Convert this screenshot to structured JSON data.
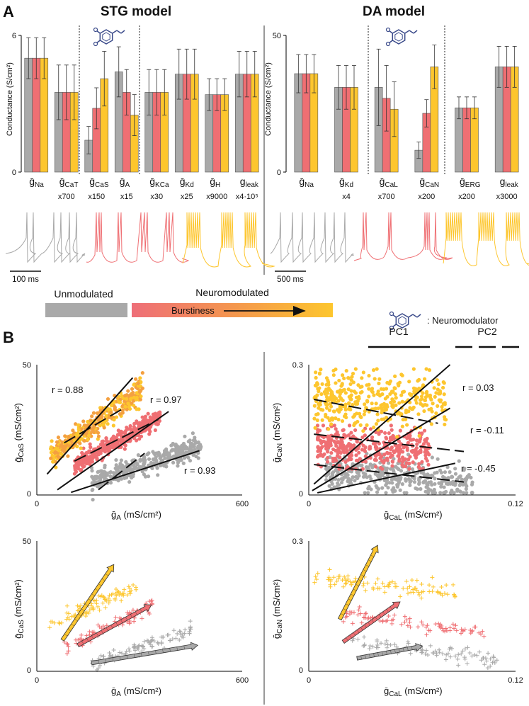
{
  "colors": {
    "unmod": "#a9a9a9",
    "red": "#ef6f73",
    "yellow": "#fdc62e",
    "orange": "#f4a040",
    "mol": "#3a4a8a",
    "black": "#000000"
  },
  "panel_a": {
    "letter": "A",
    "stg_title": "STG model",
    "da_title": "DA model",
    "stg_scale": "100 ms",
    "da_scale": "500 ms",
    "legend_unmod": "Unmodulated",
    "legend_neuromod": "Neuromodulated",
    "legend_burst": "Burstiness",
    "legend_neuromodulator": ": Neuromodulator"
  },
  "panel_b": {
    "letter": "B",
    "pc1": "PC1",
    "pc2": "PC2"
  },
  "chart_data": [
    {
      "id": "stg_bar",
      "type": "bar",
      "title": "STG model",
      "ylabel": "Conductance (S/cm²)",
      "ylim": [
        0,
        6
      ],
      "yticks": [
        "0",
        "6"
      ],
      "categories": [
        {
          "sym": "ḡ",
          "sub": "Na",
          "scale": ""
        },
        {
          "sym": "ḡ",
          "sub": "CaT",
          "scale": "x700"
        },
        {
          "sym": "ḡ",
          "sub": "CaS",
          "scale": "x150"
        },
        {
          "sym": "ḡ",
          "sub": "A",
          "scale": "x15"
        },
        {
          "sym": "ḡ",
          "sub": "KCa",
          "scale": "x30"
        },
        {
          "sym": "ḡ",
          "sub": "Kd",
          "scale": "x25"
        },
        {
          "sym": "ḡ",
          "sub": "H",
          "scale": "x9000"
        },
        {
          "sym": "g",
          "sub": "leak",
          "scale": "x4·10⁵"
        }
      ],
      "series": [
        {
          "name": "Unmodulated",
          "values": [
            5.0,
            3.5,
            1.4,
            4.4,
            3.5,
            4.3,
            3.4,
            4.3
          ],
          "errors": [
            0.9,
            1.2,
            0.6,
            1.1,
            1.0,
            1.1,
            0.7,
            1.0
          ]
        },
        {
          "name": "Neuromodulated (low)",
          "values": [
            5.0,
            3.5,
            2.8,
            3.5,
            3.5,
            4.3,
            3.4,
            4.3
          ],
          "errors": [
            0.9,
            1.2,
            0.9,
            1.0,
            1.0,
            1.1,
            0.7,
            1.0
          ]
        },
        {
          "name": "Neuromodulated (high)",
          "values": [
            5.0,
            3.5,
            4.1,
            2.5,
            3.5,
            4.3,
            3.4,
            4.3
          ],
          "errors": [
            0.9,
            1.2,
            1.2,
            0.9,
            1.0,
            1.1,
            0.7,
            1.0
          ]
        }
      ],
      "modulated_groups": [
        2,
        3
      ]
    },
    {
      "id": "da_bar",
      "type": "bar",
      "title": "DA model",
      "ylabel": "Conductance (S/cm²)",
      "ylim": [
        0,
        50
      ],
      "yticks": [
        "0",
        "50"
      ],
      "categories": [
        {
          "sym": "ḡ",
          "sub": "Na",
          "scale": ""
        },
        {
          "sym": "ḡ",
          "sub": "Kd",
          "scale": "x4"
        },
        {
          "sym": "ḡ",
          "sub": "CaL",
          "scale": "x700"
        },
        {
          "sym": "ḡ",
          "sub": "CaN",
          "scale": "x200"
        },
        {
          "sym": "ḡ",
          "sub": "ERG",
          "scale": "x200"
        },
        {
          "sym": "g",
          "sub": "leak",
          "scale": "x3000"
        }
      ],
      "series": [
        {
          "name": "Unmodulated",
          "values": [
            36,
            31,
            31,
            8,
            23.5,
            38.5
          ],
          "errors": [
            7,
            8,
            14,
            3,
            4,
            7.5
          ]
        },
        {
          "name": "Neuromodulated (low)",
          "values": [
            36,
            31,
            27,
            21.5,
            23.5,
            38.5
          ],
          "errors": [
            7,
            8,
            12,
            5,
            4,
            7.5
          ]
        },
        {
          "name": "Neuromodulated (high)",
          "values": [
            36,
            31,
            23,
            38.5,
            23.5,
            38.5
          ],
          "errors": [
            7,
            8,
            10,
            8,
            4,
            7.5
          ]
        }
      ],
      "modulated_groups": [
        2,
        3
      ]
    },
    {
      "id": "stg_scatter",
      "type": "scatter",
      "xlabel": "ḡA (mS/cm²)",
      "ylabel": "ḡCaS (mS/cm²)",
      "xlim": [
        0,
        600
      ],
      "ylim": [
        0,
        50
      ],
      "xticks": [
        "0",
        "600"
      ],
      "yticks": [
        "0",
        "50"
      ],
      "clusters": [
        {
          "name": "Unmodulated",
          "color": "gray",
          "x_range": [
            160,
            480
          ],
          "y_range": [
            5,
            19
          ],
          "spread": 2.0,
          "r": "r = 0.93",
          "pc1": [
            [
              100,
              1
            ],
            [
              475,
              17
            ]
          ],
          "pc2": [
            [
              180,
              2
            ],
            [
              315,
              16
            ]
          ]
        },
        {
          "name": "Neuromodulated (low)",
          "color": "red",
          "x_range": [
            110,
            360
          ],
          "y_range": [
            11,
            30
          ],
          "spread": 1.6,
          "r": "r = 0.97",
          "pc1": [
            [
              60,
              2
            ],
            [
              385,
              32
            ]
          ],
          "pc2": [
            [
              110,
              13
            ],
            [
              355,
              29
            ]
          ]
        },
        {
          "name": "Neuromodulated (high)",
          "color": "orange",
          "x_range": [
            40,
            310
          ],
          "y_range": [
            15,
            41
          ],
          "spread": 2.5,
          "r": "r = 0.88",
          "pc1": [
            [
              30,
              8
            ],
            [
              280,
              45
            ]
          ],
          "pc2": [
            [
              80,
              20
            ],
            [
              250,
              33
            ]
          ]
        }
      ],
      "r_labels": [
        {
          "text": "r = 0.88"
        },
        {
          "text": "r = 0.97"
        },
        {
          "text": "r = 0.93"
        }
      ]
    },
    {
      "id": "da_scatter",
      "type": "scatter",
      "xlabel": "ḡCaL (mS/cm²)",
      "ylabel": "ḡCaN (mS/cm²)",
      "xlim": [
        0,
        0.12
      ],
      "ylim": [
        0,
        0.3
      ],
      "xticks": [
        "0",
        "0.12"
      ],
      "yticks": [
        "0",
        "0.3"
      ],
      "clusters": [
        {
          "name": "Unmodulated",
          "color": "gray",
          "x_range": [
            0.01,
            0.095
          ],
          "y_range": [
            0.005,
            0.105
          ],
          "center_y": 0.045,
          "slope": -0.35,
          "spread": 0.02,
          "r": "r = -0.45",
          "pc1": [
            [
              0.005,
              0.005
            ],
            [
              0.085,
              0.073
            ]
          ],
          "pc2": [
            [
              0.003,
              0.07
            ],
            [
              0.09,
              0.03
            ]
          ]
        },
        {
          "name": "Neuromodulated (low)",
          "color": "red",
          "x_range": [
            0.005,
            0.07
          ],
          "y_range": [
            0.06,
            0.16
          ],
          "center_y": 0.11,
          "slope": -0.2,
          "spread": 0.022,
          "r": "r = -0.11",
          "pc1": [
            [
              0.002,
              0.01
            ],
            [
              0.082,
              0.2
            ]
          ],
          "pc2": [
            [
              0.003,
              0.14
            ],
            [
              0.09,
              0.1
            ]
          ]
        },
        {
          "name": "Neuromodulated (high)",
          "color": "yellow",
          "x_range": [
            0.003,
            0.08
          ],
          "y_range": [
            0.13,
            0.29
          ],
          "center_y": 0.22,
          "slope": -0.1,
          "spread": 0.032,
          "r": "r = 0.03",
          "pc1": [
            [
              0.003,
              0.025
            ],
            [
              0.082,
              0.3
            ]
          ],
          "pc2": [
            [
              0.003,
              0.22
            ],
            [
              0.075,
              0.165
            ]
          ]
        }
      ],
      "r_labels": [
        {
          "text": "r = 0.03"
        },
        {
          "text": "r = -0.11"
        },
        {
          "text": "r = -0.45"
        }
      ]
    },
    {
      "id": "stg_traj",
      "type": "scatter",
      "xlabel": "ḡA (mS/cm²)",
      "ylabel": "ḡCaS (mS/cm²)",
      "xlim": [
        0,
        600
      ],
      "ylim": [
        0,
        50
      ],
      "xticks": [
        "0",
        "600"
      ],
      "yticks": [
        "0",
        "50"
      ],
      "bands": [
        {
          "color": "yellow",
          "from": [
            35,
            18
          ],
          "to": [
            290,
            32
          ],
          "n": 90,
          "jitter": 1.6
        },
        {
          "color": "red",
          "from": [
            75,
            9
          ],
          "to": [
            340,
            25
          ],
          "n": 90,
          "jitter": 1.6
        },
        {
          "color": "gray",
          "from": [
            160,
            3
          ],
          "to": [
            455,
            16
          ],
          "n": 100,
          "jitter": 1.3
        }
      ],
      "arrows": [
        {
          "color": "yellow",
          "from": [
            75,
            12
          ],
          "to": [
            225,
            41
          ]
        },
        {
          "color": "red",
          "from": [
            120,
            10
          ],
          "to": [
            335,
            25.5
          ]
        },
        {
          "color": "gray",
          "from": [
            160,
            3.2
          ],
          "to": [
            470,
            10
          ]
        }
      ]
    },
    {
      "id": "da_traj",
      "type": "scatter",
      "xlabel": "ḡCaL (mS/cm²)",
      "ylabel": "ḡCaN (mS/cm²)",
      "xlim": [
        0,
        0.12
      ],
      "ylim": [
        0,
        0.3
      ],
      "xticks": [
        "0",
        "0.12"
      ],
      "yticks": [
        "0",
        "0.3"
      ],
      "bands": [
        {
          "color": "yellow",
          "from": [
            0.002,
            0.215
          ],
          "to": [
            0.085,
            0.18
          ],
          "n": 100,
          "jitter": 0.008
        },
        {
          "color": "red",
          "from": [
            0.02,
            0.13
          ],
          "to": [
            0.103,
            0.088
          ],
          "n": 90,
          "jitter": 0.008
        },
        {
          "color": "gray",
          "from": [
            0.025,
            0.072
          ],
          "to": [
            0.11,
            0.025
          ],
          "n": 90,
          "jitter": 0.008
        }
      ],
      "arrows": [
        {
          "color": "yellow",
          "from": [
            0.018,
            0.12
          ],
          "to": [
            0.04,
            0.29
          ]
        },
        {
          "color": "red",
          "from": [
            0.02,
            0.068
          ],
          "to": [
            0.053,
            0.16
          ]
        },
        {
          "color": "gray",
          "from": [
            0.028,
            0.03
          ],
          "to": [
            0.066,
            0.058
          ]
        }
      ]
    }
  ]
}
